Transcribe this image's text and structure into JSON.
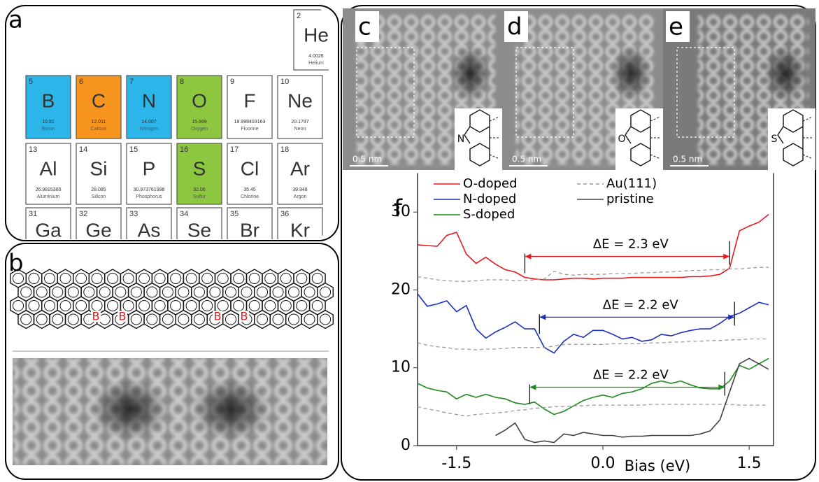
{
  "panel_labels": [
    "a",
    "b",
    "c",
    "d",
    "e",
    "f"
  ],
  "periodic_table": {
    "elements": [
      {
        "number": "2",
        "symbol": "He",
        "mass": "4.0026",
        "name": "Helium",
        "color": "#ffffff"
      },
      {
        "number": "5",
        "symbol": "B",
        "mass": "10.81",
        "name": "Boron",
        "color": "#2bb5e8"
      },
      {
        "number": "6",
        "symbol": "C",
        "mass": "12.011",
        "name": "Carbon",
        "color": "#f7941d"
      },
      {
        "number": "7",
        "symbol": "N",
        "mass": "14.007",
        "name": "Nitrogen",
        "color": "#2bb5e8"
      },
      {
        "number": "8",
        "symbol": "O",
        "mass": "15.999",
        "name": "Oxygen",
        "color": "#8dc63f"
      },
      {
        "number": "9",
        "symbol": "F",
        "mass": "18.998403163",
        "name": "Fluorine",
        "color": "#ffffff"
      },
      {
        "number": "10",
        "symbol": "Ne",
        "mass": "20.1797",
        "name": "Neon",
        "color": "#ffffff"
      },
      {
        "number": "13",
        "symbol": "Al",
        "mass": "26.9815385",
        "name": "Aluminium",
        "color": "#ffffff"
      },
      {
        "number": "14",
        "symbol": "Si",
        "mass": "28.085",
        "name": "Silicon",
        "color": "#ffffff"
      },
      {
        "number": "15",
        "symbol": "P",
        "mass": "30.973761998",
        "name": "Phosphorus",
        "color": "#ffffff"
      },
      {
        "number": "16",
        "symbol": "S",
        "mass": "32.06",
        "name": "Sulfur",
        "color": "#8dc63f"
      },
      {
        "number": "17",
        "symbol": "Cl",
        "mass": "35.45",
        "name": "Chlorine",
        "color": "#ffffff"
      },
      {
        "number": "18",
        "symbol": "Ar",
        "mass": "39.948",
        "name": "Argon",
        "color": "#ffffff"
      },
      {
        "number": "31",
        "symbol": "Ga",
        "color": "#ffffff"
      },
      {
        "number": "32",
        "symbol": "Ge",
        "color": "#ffffff"
      },
      {
        "number": "33",
        "symbol": "As",
        "color": "#ffffff"
      },
      {
        "number": "34",
        "symbol": "Se",
        "color": "#ffffff"
      },
      {
        "number": "35",
        "symbol": "Br",
        "color": "#ffffff"
      },
      {
        "number": "36",
        "symbol": "Kr",
        "color": "#ffffff"
      }
    ]
  },
  "ribbon": {
    "atom_labels": [
      "B",
      "B",
      "B",
      "B"
    ]
  },
  "stm_images": [
    {
      "scale_bar": "0.5 nm",
      "heteroatom": "N"
    },
    {
      "scale_bar": "0.5 nm",
      "heteroatom": "O"
    },
    {
      "scale_bar": "0.5 nm",
      "heteroatom": "S"
    }
  ],
  "chart_data": {
    "type": "line",
    "xlabel": "Bias (eV)",
    "x": [
      -1.9,
      -1.8,
      -1.7,
      -1.6,
      -1.5,
      -1.4,
      -1.3,
      -1.2,
      -1.1,
      -1.0,
      -0.9,
      -0.8,
      -0.7,
      -0.6,
      -0.5,
      -0.4,
      -0.3,
      -0.2,
      -0.1,
      0.0,
      0.1,
      0.2,
      0.3,
      0.4,
      0.5,
      0.6,
      0.7,
      0.8,
      0.9,
      1.0,
      1.1,
      1.2,
      1.3,
      1.4,
      1.5,
      1.6,
      1.7
    ],
    "xlim": [
      -1.9,
      1.75
    ],
    "xticks": [
      -1.5,
      {
        "value": 0,
        "label": "0.0"
      },
      1.5
    ],
    "ylim": [
      0,
      35
    ],
    "yticks": [
      0,
      10,
      20,
      30
    ],
    "series": [
      {
        "name": "O-doped",
        "color": "#e8191e",
        "values": [
          25.8,
          25.7,
          25.6,
          27.0,
          27.4,
          24.6,
          23.4,
          24.2,
          23.3,
          22.6,
          22.3,
          21.6,
          21.4,
          21.3,
          21.3,
          21.4,
          21.5,
          21.5,
          21.4,
          21.5,
          21.5,
          21.5,
          21.6,
          21.6,
          21.6,
          21.6,
          21.6,
          21.6,
          21.7,
          21.7,
          21.8,
          22.0,
          22.8,
          27.6,
          28.2,
          28.7,
          29.7
        ]
      },
      {
        "name": "N-doped",
        "color": "#1c2fc0",
        "values": [
          19.5,
          17.9,
          18.2,
          18.6,
          17.2,
          18.0,
          15.0,
          13.8,
          14.6,
          15.2,
          15.9,
          15.0,
          15.0,
          12.6,
          11.9,
          13.4,
          14.3,
          13.9,
          14.8,
          14.8,
          14.3,
          13.7,
          13.9,
          13.4,
          13.6,
          14.3,
          14.1,
          14.5,
          14.8,
          15.0,
          15.0,
          15.7,
          16.6,
          17.0,
          17.7,
          18.4,
          18.1
        ]
      },
      {
        "name": "S-doped",
        "color": "#1e8a1e",
        "values": [
          8.0,
          7.4,
          7.1,
          6.9,
          6.0,
          6.6,
          6.2,
          6.6,
          6.2,
          6.0,
          5.5,
          5.3,
          5.6,
          4.7,
          4.0,
          4.4,
          5.1,
          5.8,
          6.2,
          6.5,
          6.2,
          6.7,
          6.9,
          7.3,
          8.0,
          8.3,
          8.0,
          8.3,
          7.8,
          7.4,
          7.3,
          7.3,
          8.3,
          10.3,
          9.8,
          10.5,
          11.2
        ]
      },
      {
        "name": "Au(111)",
        "color": "#999999",
        "linestyle": "dashed",
        "curves": [
          [
            21.7,
            21.5,
            21.3,
            21.2,
            21.1,
            21.1,
            21.2,
            21.3,
            21.3,
            21.3,
            21.2,
            21.2,
            21.3,
            21.4,
            22.4,
            22.0,
            21.9,
            22.0,
            22.0,
            22.0,
            22.1,
            22.1,
            22.1,
            22.2,
            22.2,
            22.3,
            22.3,
            22.4,
            22.5,
            22.5,
            22.6,
            22.6,
            22.7,
            22.7,
            22.8,
            22.9,
            22.9
          ],
          [
            13.2,
            12.9,
            12.7,
            12.6,
            12.4,
            12.4,
            12.3,
            12.4,
            12.4,
            12.5,
            12.6,
            12.6,
            12.6,
            12.6,
            12.8,
            13.0,
            13.0,
            13.0,
            13.0,
            13.0,
            13.1,
            13.1,
            13.1,
            13.1,
            13.2,
            13.2,
            13.3,
            13.3,
            13.4,
            13.4,
            13.5,
            13.5,
            13.6,
            13.6,
            13.7,
            13.7,
            13.7
          ],
          [
            5.0,
            4.7,
            4.5,
            4.2,
            4.0,
            3.8,
            4.0,
            4.1,
            4.2,
            4.3,
            4.5,
            4.6,
            4.8,
            4.9,
            5.0,
            5.0,
            5.1,
            5.1,
            5.2,
            5.2,
            5.2,
            5.2,
            5.2,
            5.2,
            5.3,
            5.3,
            5.3,
            5.3,
            5.3,
            5.3,
            5.3,
            5.3,
            5.3,
            5.2,
            5.2,
            5.2,
            5.2
          ]
        ]
      },
      {
        "name": "pristine",
        "color": "#444444",
        "values": [
          null,
          null,
          null,
          null,
          null,
          null,
          null,
          null,
          1.3,
          2.0,
          2.9,
          0.8,
          0.4,
          0.6,
          0.4,
          1.5,
          1.3,
          1.7,
          1.5,
          1.3,
          1.3,
          1.1,
          1.2,
          1.2,
          1.3,
          1.3,
          1.3,
          1.3,
          1.3,
          1.5,
          1.9,
          3.3,
          6.9,
          10.5,
          11.2,
          10.5,
          9.8
        ]
      }
    ],
    "annotations": [
      {
        "text": "ΔE = 2.3 eV",
        "from": -0.8,
        "to": 1.3,
        "y": 24.3,
        "color": "#e8191e"
      },
      {
        "text": "ΔE = 2.2 eV",
        "from": -0.65,
        "to": 1.35,
        "y": 16.5,
        "color": "#1c2fc0"
      },
      {
        "text": "ΔE = 2.2 eV",
        "from": -0.75,
        "to": 1.25,
        "y": 7.5,
        "color": "#1e8a1e"
      }
    ]
  }
}
